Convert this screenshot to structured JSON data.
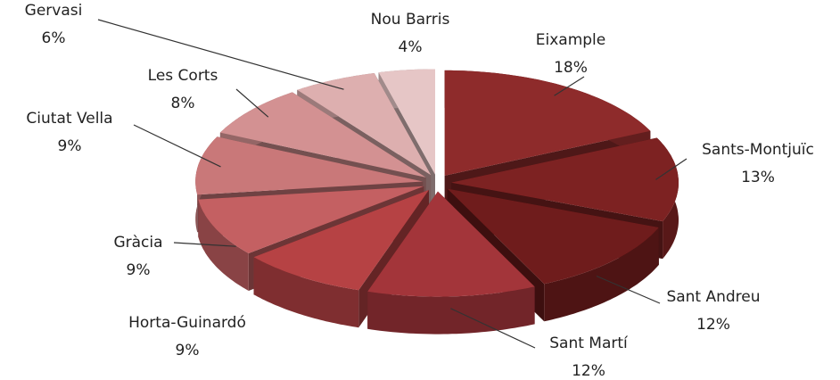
{
  "chart_data": {
    "type": "pie3d",
    "categories": [
      "Eixample",
      "Sants-Montjuïc",
      "Sant Andreu",
      "Sant Martí",
      "Horta-Guinardó",
      "Gràcia",
      "Ciutat Vella",
      "Les Corts",
      "Gervasi",
      "Nou Barris"
    ],
    "values": [
      18,
      13,
      12,
      12,
      9,
      9,
      9,
      8,
      6,
      4
    ],
    "value_labels": [
      "18%",
      "13%",
      "12%",
      "12%",
      "9%",
      "9%",
      "9%",
      "8%",
      "6%",
      "4%"
    ],
    "colors": [
      "#8e2b2b",
      "#7d2222",
      "#6f1c1c",
      "#a3353a",
      "#b64244",
      "#c46062",
      "#c97879",
      "#d39192",
      "#ddafaf",
      "#e6c6c6"
    ]
  }
}
